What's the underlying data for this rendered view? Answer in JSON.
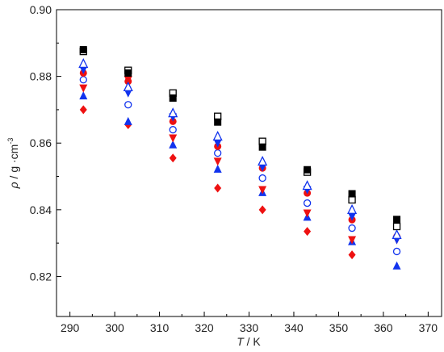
{
  "chart_data": {
    "type": "scatter",
    "xlabel_var": "T",
    "xlabel_unit": " / K",
    "ylabel_var": "ρ",
    "ylabel_unit": " / g ·cm",
    "ylabel_sup": "-3",
    "x": [
      293,
      303,
      313,
      323,
      333,
      343,
      353,
      363
    ],
    "xlim": [
      287,
      373
    ],
    "xticks": [
      290,
      300,
      310,
      320,
      330,
      340,
      350,
      360,
      370
    ],
    "ylim": [
      0.808,
      0.9
    ],
    "yticks": [
      0.82,
      0.84,
      0.86,
      0.88,
      {
        "value": 0.9,
        "label": "0.90"
      }
    ],
    "series": [
      {
        "color": "#ee1111",
        "marker": "diamond",
        "values": [
          0.87,
          0.8655,
          0.8555,
          0.8465,
          0.84,
          0.8335,
          0.8265,
          null
        ]
      },
      {
        "color": "#1133ee",
        "marker": "triangle-up",
        "values": [
          0.8742,
          0.8665,
          0.8595,
          0.8522,
          0.8452,
          0.8378,
          0.8305,
          0.8232
        ]
      },
      {
        "color": "#ee1111",
        "marker": "triangle-down",
        "values": [
          0.8765,
          0.879,
          0.8615,
          0.8545,
          0.846,
          0.839,
          0.831,
          0.831
        ]
      },
      {
        "color": "#1133ee",
        "marker": "circle-open",
        "values": [
          0.879,
          0.8715,
          0.864,
          0.857,
          0.8495,
          0.842,
          0.8345,
          0.8275
        ]
      },
      {
        "color": "#ee1111",
        "marker": "circle",
        "values": [
          0.881,
          0.8785,
          0.8665,
          0.859,
          0.8525,
          0.845,
          0.837,
          0.832
        ]
      },
      {
        "color": "#1133ee",
        "marker": "triangle-down",
        "values": [
          0.882,
          0.875,
          0.8678,
          0.86,
          0.8528,
          0.846,
          0.838,
          0.831
        ]
      },
      {
        "color": "#1133ee",
        "marker": "triangle-up-open",
        "values": [
          0.8838,
          0.8768,
          0.869,
          0.862,
          0.8545,
          0.8472,
          0.84,
          0.8325
        ]
      },
      {
        "color": "#000000",
        "marker": "square-open",
        "values": [
          0.8875,
          0.8818,
          0.875,
          0.868,
          0.8605,
          0.8513,
          0.843,
          0.835
        ]
      },
      {
        "color": "#000000",
        "marker": "square",
        "values": [
          0.888,
          0.881,
          0.8735,
          0.8663,
          0.8588,
          0.852,
          0.8448,
          0.8371
        ]
      }
    ]
  }
}
